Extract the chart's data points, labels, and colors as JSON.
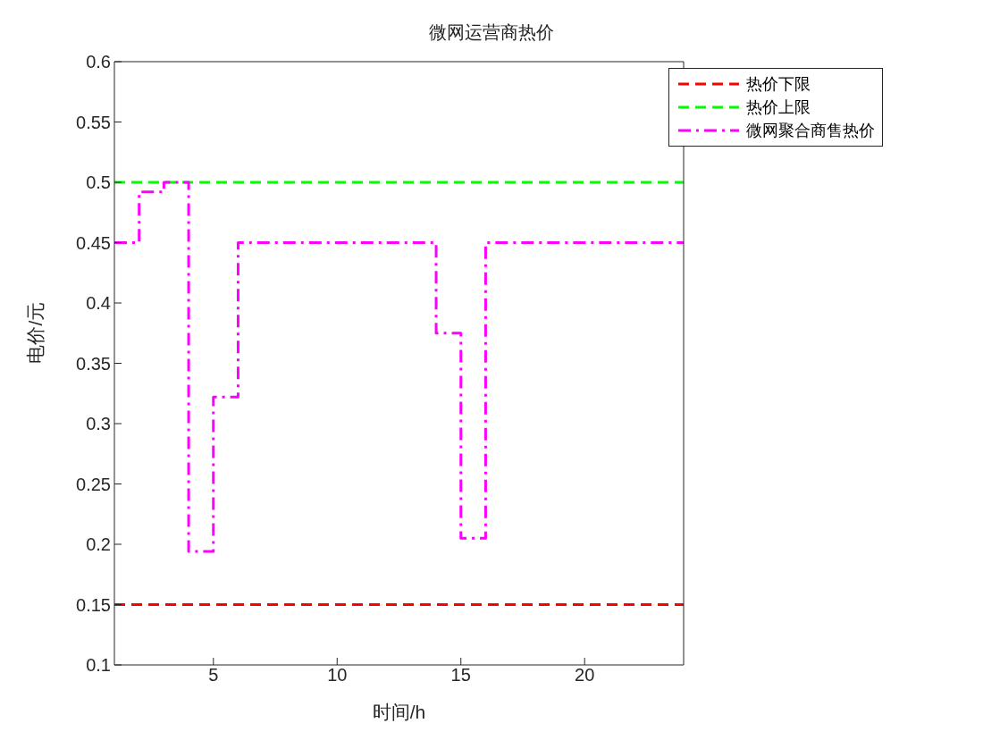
{
  "chart_data": {
    "type": "line",
    "title": "微网运营商热价",
    "xlabel": "时间/h",
    "ylabel": "电价/元",
    "x": [
      1,
      2,
      3,
      4,
      5,
      6,
      7,
      8,
      9,
      10,
      11,
      12,
      13,
      14,
      15,
      16,
      17,
      18,
      19,
      20,
      21,
      22,
      23,
      24
    ],
    "series": [
      {
        "name": "热价下限",
        "type": "line",
        "line_style": "dashed",
        "color": "#ff0000",
        "values": [
          0.15,
          0.15,
          0.15,
          0.15,
          0.15,
          0.15,
          0.15,
          0.15,
          0.15,
          0.15,
          0.15,
          0.15,
          0.15,
          0.15,
          0.15,
          0.15,
          0.15,
          0.15,
          0.15,
          0.15,
          0.15,
          0.15,
          0.15,
          0.15
        ]
      },
      {
        "name": "热价上限",
        "type": "line",
        "line_style": "dashed",
        "color": "#00ff00",
        "values": [
          0.5,
          0.5,
          0.5,
          0.5,
          0.5,
          0.5,
          0.5,
          0.5,
          0.5,
          0.5,
          0.5,
          0.5,
          0.5,
          0.5,
          0.5,
          0.5,
          0.5,
          0.5,
          0.5,
          0.5,
          0.5,
          0.5,
          0.5,
          0.5
        ]
      },
      {
        "name": "微网聚合商售热价",
        "type": "step",
        "line_style": "dashdot",
        "color": "#ff00ff",
        "values": [
          0.45,
          0.492,
          0.5,
          0.194,
          0.322,
          0.45,
          0.45,
          0.45,
          0.45,
          0.45,
          0.45,
          0.45,
          0.45,
          0.375,
          0.205,
          0.45,
          0.45,
          0.45,
          0.45,
          0.45,
          0.45,
          0.45,
          0.45,
          0.45
        ]
      }
    ],
    "xlim": [
      1,
      24
    ],
    "xticks": [
      5,
      10,
      15,
      20
    ],
    "ylim": [
      0.1,
      0.6
    ],
    "yticks": [
      0.1,
      0.15,
      0.2,
      0.25,
      0.3,
      0.35,
      0.4,
      0.45,
      0.5,
      0.55,
      0.6
    ],
    "grid": false,
    "legend": "top right"
  }
}
